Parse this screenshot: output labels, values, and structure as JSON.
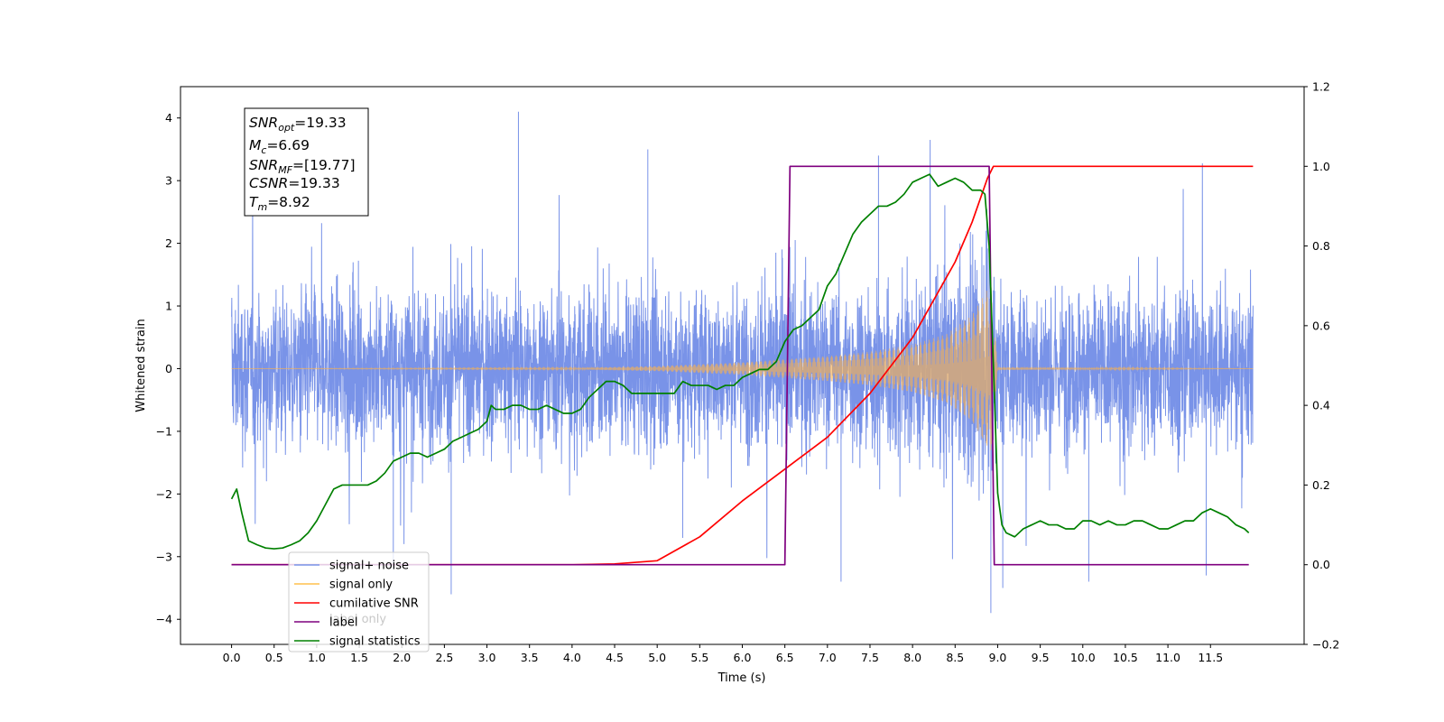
{
  "chart_data": {
    "type": "line",
    "xlabel": "Time (s)",
    "ylabel": "Whitened strain",
    "xlim": [
      -0.6,
      12.6
    ],
    "ylim": [
      -4.4,
      4.5
    ],
    "ylim_right": [
      -0.2,
      1.2
    ],
    "x_ticks": [
      0.0,
      0.5,
      1.0,
      1.5,
      2.0,
      2.5,
      3.0,
      3.5,
      4.0,
      4.5,
      5.0,
      5.5,
      6.0,
      6.5,
      7.0,
      7.5,
      8.0,
      8.5,
      9.0,
      9.5,
      10.0,
      10.5,
      11.0,
      11.5
    ],
    "x_tick_labels": [
      "0.0",
      "0.5",
      "1.0",
      "1.5",
      "2.0",
      "2.5",
      "3.0",
      "3.5",
      "4.0",
      "4.5",
      "5.0",
      "5.5",
      "6.0",
      "6.5",
      "7.0",
      "7.5",
      "8.0",
      "8.5",
      "9.0",
      "9.5",
      "10.0",
      "10.5",
      "11.0",
      "11.5"
    ],
    "y_ticks": [
      -4,
      -3,
      -2,
      -1,
      0,
      1,
      2,
      3,
      4
    ],
    "y_tick_labels": [
      "−4",
      "−3",
      "−2",
      "−1",
      "0",
      "1",
      "2",
      "3",
      "4"
    ],
    "y2_ticks": [
      -0.2,
      0.0,
      0.2,
      0.4,
      0.6,
      0.8,
      1.0,
      1.2
    ],
    "y2_tick_labels": [
      "−0.2",
      "0.0",
      "0.2",
      "0.4",
      "0.6",
      "0.8",
      "1.0",
      "1.2"
    ],
    "legend_position": "bottom-left",
    "grid": false,
    "legend": [
      {
        "label": "signal+ noise",
        "color": "#7b96e8"
      },
      {
        "label": "signal only",
        "color": "#ffc04d"
      },
      {
        "label": "cumilative SNR",
        "color": "#ff0000"
      },
      {
        "label": "label",
        "color": "#7f007f"
      },
      {
        "label": "signal statistics",
        "color": "#008000"
      }
    ],
    "legend_ghost_text": "label only",
    "annotation": {
      "snr_opt": {
        "name": "SNR",
        "sub": "opt",
        "value": "=19.33"
      },
      "mc": {
        "name": "M",
        "sub": "c",
        "value": "=6.69"
      },
      "snr_mf": {
        "name": "SNR",
        "sub": "MF",
        "value": "=[19.77]"
      },
      "csnr": {
        "name": "CSNR",
        "value": "=19.33"
      },
      "tm": {
        "name": "T",
        "sub": "m",
        "value": "=8.92"
      }
    },
    "series": [
      {
        "name": "signal+ noise",
        "axis": "left",
        "color": "#6a87e5",
        "x_range": [
          0.0,
          12.0
        ],
        "typical_band": [
          -1.2,
          1.3
        ],
        "spikes": [
          [
            3.37,
            4.1
          ],
          [
            4.89,
            3.5
          ],
          [
            7.6,
            3.4
          ],
          [
            1.9,
            -3.2
          ],
          [
            2.58,
            -3.6
          ],
          [
            7.16,
            -3.4
          ],
          [
            8.92,
            -3.9
          ],
          [
            9.06,
            -3.5
          ],
          [
            10.07,
            -3.4
          ],
          [
            11.45,
            -3.3
          ],
          [
            5.3,
            -2.7
          ]
        ]
      },
      {
        "name": "signal only",
        "axis": "left",
        "color": "#ffb347",
        "envelope": [
          [
            0.0,
            0.0
          ],
          [
            4.0,
            0.01
          ],
          [
            5.0,
            0.04
          ],
          [
            6.0,
            0.1
          ],
          [
            7.0,
            0.2
          ],
          [
            7.5,
            0.27
          ],
          [
            8.0,
            0.38
          ],
          [
            8.4,
            0.55
          ],
          [
            8.7,
            0.85
          ],
          [
            8.85,
            1.2
          ],
          [
            8.92,
            1.35
          ],
          [
            9.0,
            0.02
          ],
          [
            12.0,
            0.0
          ]
        ]
      },
      {
        "name": "cumilative SNR",
        "axis": "right",
        "color": "#ff0000",
        "x": [
          0.0,
          4.0,
          4.5,
          5.0,
          5.5,
          6.0,
          6.5,
          7.0,
          7.5,
          8.0,
          8.5,
          8.7,
          8.88,
          8.95,
          12.0
        ],
        "y": [
          0.0,
          0.0,
          0.002,
          0.01,
          0.07,
          0.16,
          0.24,
          0.32,
          0.43,
          0.57,
          0.76,
          0.86,
          0.97,
          1.0,
          1.0
        ]
      },
      {
        "name": "label",
        "axis": "right",
        "color": "#7f007f",
        "x": [
          0.0,
          6.5,
          6.56,
          8.9,
          8.96,
          11.95
        ],
        "y": [
          0.0,
          0.0,
          1.0,
          1.0,
          0.0,
          0.0
        ]
      },
      {
        "name": "signal statistics",
        "axis": "right",
        "color": "#008000",
        "x": [
          0.0,
          0.06,
          0.12,
          0.2,
          0.3,
          0.4,
          0.5,
          0.6,
          0.7,
          0.8,
          0.9,
          1.0,
          1.1,
          1.2,
          1.3,
          1.4,
          1.5,
          1.6,
          1.7,
          1.8,
          1.9,
          2.0,
          2.1,
          2.2,
          2.3,
          2.4,
          2.5,
          2.6,
          2.7,
          2.8,
          2.9,
          3.0,
          3.05,
          3.1,
          3.2,
          3.3,
          3.4,
          3.5,
          3.6,
          3.7,
          3.8,
          3.9,
          4.0,
          4.1,
          4.2,
          4.3,
          4.4,
          4.5,
          4.6,
          4.7,
          4.8,
          4.9,
          5.0,
          5.1,
          5.2,
          5.3,
          5.4,
          5.5,
          5.6,
          5.7,
          5.8,
          5.9,
          6.0,
          6.1,
          6.2,
          6.3,
          6.4,
          6.5,
          6.6,
          6.7,
          6.8,
          6.9,
          7.0,
          7.1,
          7.2,
          7.3,
          7.4,
          7.5,
          7.6,
          7.7,
          7.8,
          7.9,
          8.0,
          8.1,
          8.2,
          8.3,
          8.4,
          8.5,
          8.6,
          8.7,
          8.8,
          8.85,
          8.9,
          8.95,
          9.0,
          9.05,
          9.1,
          9.2,
          9.3,
          9.4,
          9.5,
          9.6,
          9.7,
          9.8,
          9.9,
          10.0,
          10.1,
          10.2,
          10.3,
          10.4,
          10.5,
          10.6,
          10.7,
          10.8,
          10.9,
          11.0,
          11.1,
          11.2,
          11.3,
          11.4,
          11.5,
          11.6,
          11.7,
          11.8,
          11.9,
          11.95
        ],
        "y": [
          0.165,
          0.19,
          0.13,
          0.06,
          0.05,
          0.042,
          0.04,
          0.042,
          0.05,
          0.06,
          0.08,
          0.11,
          0.15,
          0.19,
          0.2,
          0.2,
          0.2,
          0.2,
          0.21,
          0.23,
          0.26,
          0.27,
          0.28,
          0.28,
          0.27,
          0.28,
          0.29,
          0.31,
          0.32,
          0.33,
          0.34,
          0.36,
          0.4,
          0.39,
          0.39,
          0.4,
          0.4,
          0.39,
          0.39,
          0.4,
          0.39,
          0.38,
          0.38,
          0.39,
          0.42,
          0.44,
          0.46,
          0.46,
          0.45,
          0.43,
          0.43,
          0.43,
          0.43,
          0.43,
          0.43,
          0.46,
          0.45,
          0.45,
          0.45,
          0.44,
          0.45,
          0.45,
          0.47,
          0.48,
          0.49,
          0.49,
          0.51,
          0.56,
          0.59,
          0.6,
          0.62,
          0.64,
          0.7,
          0.73,
          0.78,
          0.83,
          0.86,
          0.88,
          0.9,
          0.9,
          0.91,
          0.93,
          0.96,
          0.97,
          0.98,
          0.95,
          0.96,
          0.97,
          0.96,
          0.94,
          0.94,
          0.93,
          0.8,
          0.5,
          0.18,
          0.1,
          0.08,
          0.07,
          0.09,
          0.1,
          0.11,
          0.1,
          0.1,
          0.09,
          0.09,
          0.11,
          0.11,
          0.1,
          0.11,
          0.1,
          0.1,
          0.11,
          0.11,
          0.1,
          0.09,
          0.09,
          0.1,
          0.11,
          0.11,
          0.13,
          0.14,
          0.13,
          0.12,
          0.1,
          0.09,
          0.08
        ]
      }
    ]
  }
}
